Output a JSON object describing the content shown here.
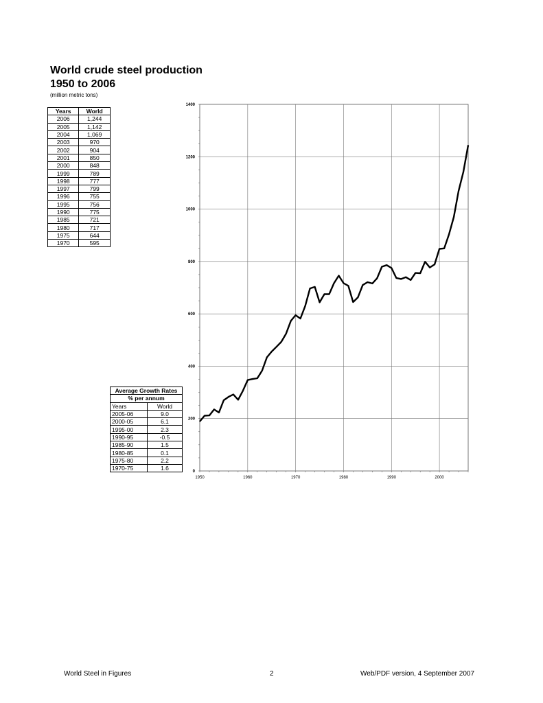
{
  "heading": {
    "line1": "World crude steel production",
    "line2": "1950 to 2006",
    "units": "(million metric tons)"
  },
  "production_table": {
    "headers": [
      "Years",
      "World"
    ],
    "rows": [
      [
        "2006",
        "1,244"
      ],
      [
        "2005",
        "1,142"
      ],
      [
        "2004",
        "1,069"
      ],
      [
        "2003",
        "970"
      ],
      [
        "2002",
        "904"
      ],
      [
        "2001",
        "850"
      ],
      [
        "2000",
        "848"
      ],
      [
        "1999",
        "789"
      ],
      [
        "1998",
        "777"
      ],
      [
        "1997",
        "799"
      ],
      [
        "1996",
        "755"
      ],
      [
        "1995",
        "756"
      ],
      [
        "1990",
        "775"
      ],
      [
        "1985",
        "721"
      ],
      [
        "1980",
        "717"
      ],
      [
        "1975",
        "644"
      ],
      [
        "1970",
        "595"
      ]
    ]
  },
  "growth_table": {
    "title": "Average Growth Rates",
    "subtitle": "% per annum",
    "headers": [
      "Years",
      "World"
    ],
    "rows": [
      [
        "2005-06",
        "9.0"
      ],
      [
        "2000-05",
        "6.1"
      ],
      [
        "1995-00",
        "2.3"
      ],
      [
        "1990-95",
        "-0.5"
      ],
      [
        "1985-90",
        "1.5"
      ],
      [
        "1980-85",
        "0.1"
      ],
      [
        "1975-80",
        "2.2"
      ],
      [
        "1970-75",
        "1.6"
      ]
    ]
  },
  "chart_data": {
    "type": "line",
    "title": "",
    "xlabel": "",
    "ylabel": "",
    "xlim": [
      1950,
      2006
    ],
    "ylim": [
      0,
      1400
    ],
    "grid": true,
    "x_ticks": [
      1950,
      1960,
      1970,
      1980,
      1990,
      2000
    ],
    "y_ticks": [
      0,
      200,
      400,
      600,
      800,
      1000,
      1200,
      1400
    ],
    "x": [
      1950,
      1951,
      1952,
      1953,
      1954,
      1955,
      1956,
      1957,
      1958,
      1959,
      1960,
      1961,
      1962,
      1963,
      1964,
      1965,
      1966,
      1967,
      1968,
      1969,
      1970,
      1971,
      1972,
      1973,
      1974,
      1975,
      1976,
      1977,
      1978,
      1979,
      1980,
      1981,
      1982,
      1983,
      1984,
      1985,
      1986,
      1987,
      1988,
      1989,
      1990,
      1991,
      1992,
      1993,
      1994,
      1995,
      1996,
      1997,
      1998,
      1999,
      2000,
      2001,
      2002,
      2003,
      2004,
      2005,
      2006
    ],
    "series": [
      {
        "values": [
          189,
          211,
          212,
          235,
          223,
          270,
          283,
          292,
          272,
          306,
          347,
          351,
          354,
          383,
          434,
          456,
          474,
          493,
          524,
          573,
          595,
          582,
          630,
          697,
          703,
          644,
          675,
          675,
          717,
          746,
          717,
          707,
          645,
          663,
          710,
          721,
          716,
          736,
          780,
          786,
          775,
          737,
          733,
          740,
          729,
          756,
          755,
          799,
          777,
          789,
          848,
          850,
          904,
          970,
          1069,
          1142,
          1244
        ]
      }
    ]
  },
  "footer": {
    "left": "World Steel in Figures",
    "center": "2",
    "right": "Web/PDF version, 4 September 2007"
  }
}
